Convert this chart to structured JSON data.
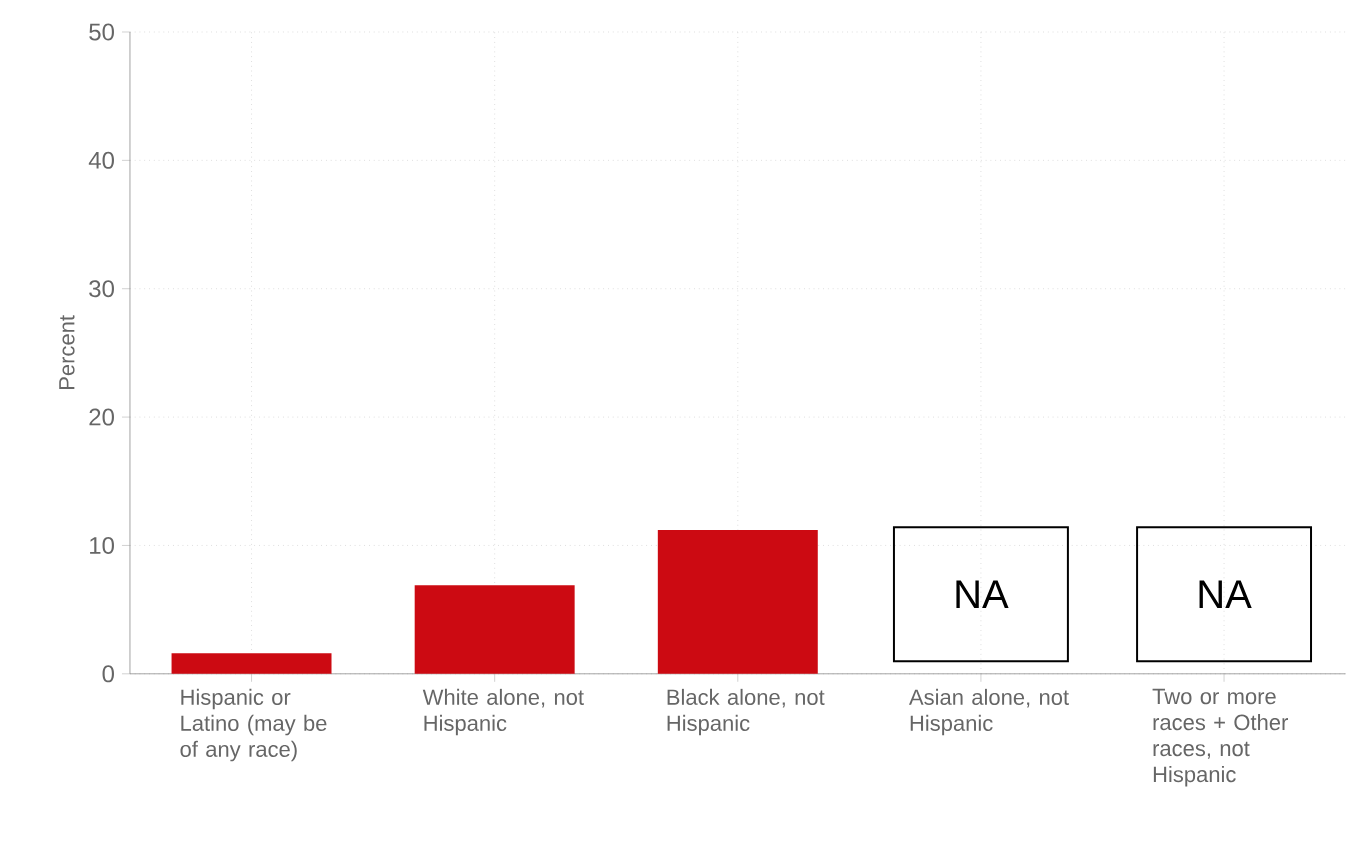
{
  "chart_data": {
    "type": "bar",
    "ylabel": "Percent",
    "categories": [
      "Hispanic or Latino (may be of any race)",
      "White alone, not Hispanic",
      "Black alone, not Hispanic",
      "Asian alone, not Hispanic",
      "Two or more races + Other races, not Hispanic"
    ],
    "values": [
      1.6,
      6.9,
      11.2,
      null,
      null
    ],
    "value_labels": [
      null,
      null,
      null,
      "NA",
      "NA"
    ],
    "color": "#cc0a12",
    "ylim": [
      0,
      50
    ],
    "yticks": [
      0,
      10,
      20,
      30,
      40,
      50
    ],
    "grid": true
  }
}
